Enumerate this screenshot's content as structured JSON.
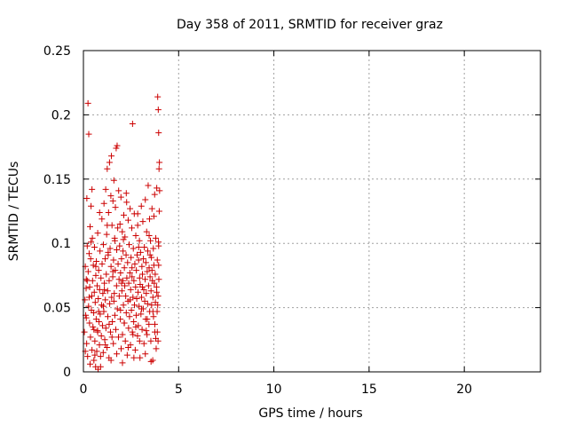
{
  "chart_data": {
    "type": "scatter",
    "title": "Day 358 of 2011, SRMTID for receiver graz",
    "xlabel": "GPS time / hours",
    "ylabel": "SRMTID / TECUs",
    "xlim": [
      0,
      24
    ],
    "ylim": [
      0,
      0.25
    ],
    "xticks": [
      0,
      5,
      10,
      15,
      20
    ],
    "xtick_labels": [
      "0",
      "5",
      "10",
      "15",
      "20"
    ],
    "yticks": [
      0,
      0.05,
      0.1,
      0.15,
      0.2,
      0.25
    ],
    "ytick_labels": [
      "0",
      "0.05",
      "0.1",
      "0.15",
      "0.2",
      "0.25"
    ],
    "grid": true,
    "marker": "plus",
    "marker_color": "#cc0000",
    "series": [
      {
        "points": [
          [
            0.05,
            0.031
          ],
          [
            0.08,
            0.056
          ],
          [
            0.1,
            0.082
          ],
          [
            0.12,
            0.044
          ],
          [
            0.14,
            0.065
          ],
          [
            0.15,
            0.072
          ],
          [
            0.17,
            0.022
          ],
          [
            0.18,
            0.135
          ],
          [
            0.2,
            0.098
          ],
          [
            0.22,
            0.012
          ],
          [
            0.24,
            0.209
          ],
          [
            0.25,
            0.078
          ],
          [
            0.27,
            0.051
          ],
          [
            0.28,
            0.185
          ],
          [
            0.3,
            0.092
          ],
          [
            0.32,
            0.038
          ],
          [
            0.33,
            0.066
          ],
          [
            0.35,
            0.113
          ],
          [
            0.37,
            0.027
          ],
          [
            0.38,
            0.088
          ],
          [
            0.4,
            0.129
          ],
          [
            0.42,
            0.048
          ],
          [
            0.44,
            0.059
          ],
          [
            0.45,
            0.017
          ],
          [
            0.47,
            0.104
          ],
          [
            0.48,
            0.071
          ],
          [
            0.5,
            0.035
          ],
          [
            0.52,
            0.083
          ],
          [
            0.54,
            0.046
          ],
          [
            0.55,
            0.009
          ],
          [
            0.57,
            0.062
          ],
          [
            0.58,
            0.097
          ],
          [
            0.6,
            0.024
          ],
          [
            0.62,
            0.054
          ],
          [
            0.64,
            0.004
          ],
          [
            0.65,
            0.075
          ],
          [
            0.67,
            0.041
          ],
          [
            0.68,
            0.086
          ],
          [
            0.7,
            0.016
          ],
          [
            0.72,
            0.067
          ],
          [
            0.74,
            0.032
          ],
          [
            0.75,
            0.108
          ],
          [
            0.77,
            0.002
          ],
          [
            0.78,
            0.057
          ],
          [
            0.8,
            0.079
          ],
          [
            0.82,
            0.039
          ],
          [
            0.84,
            0.021
          ],
          [
            0.85,
            0.064
          ],
          [
            0.87,
            0.094
          ],
          [
            0.88,
            0.045
          ],
          [
            0.9,
            0.012
          ],
          [
            0.92,
            0.073
          ],
          [
            0.94,
            0.028
          ],
          [
            0.95,
            0.052
          ],
          [
            0.97,
            0.119
          ],
          [
            0.98,
            0.084
          ],
          [
            1.0,
            0.036
          ],
          [
            1.02,
            0.061
          ],
          [
            1.04,
            0.015
          ],
          [
            1.05,
            0.099
          ],
          [
            1.07,
            0.047
          ],
          [
            1.08,
            0.131
          ],
          [
            1.1,
            0.069
          ],
          [
            1.12,
            0.025
          ],
          [
            1.14,
            0.088
          ],
          [
            1.15,
            0.056
          ],
          [
            1.17,
            0.142
          ],
          [
            1.18,
            0.034
          ],
          [
            1.2,
            0.076
          ],
          [
            1.22,
            0.107
          ],
          [
            1.24,
            0.019
          ],
          [
            1.25,
            0.158
          ],
          [
            1.27,
            0.063
          ],
          [
            1.28,
            0.043
          ],
          [
            1.3,
            0.091
          ],
          [
            1.32,
            0.124
          ],
          [
            1.34,
            0.011
          ],
          [
            1.35,
            0.071
          ],
          [
            1.37,
            0.163
          ],
          [
            1.38,
            0.053
          ],
          [
            1.4,
            0.096
          ],
          [
            1.42,
            0.031
          ],
          [
            1.44,
            0.137
          ],
          [
            1.45,
            0.082
          ],
          [
            1.47,
            0.168
          ],
          [
            1.48,
            0.058
          ],
          [
            1.5,
            0.114
          ],
          [
            1.52,
            0.039
          ],
          [
            1.54,
            0.074
          ],
          [
            1.55,
            0.133
          ],
          [
            1.57,
            0.022
          ],
          [
            1.58,
            0.087
          ],
          [
            1.6,
            0.149
          ],
          [
            1.62,
            0.061
          ],
          [
            1.64,
            0.104
          ],
          [
            1.65,
            0.044
          ],
          [
            1.67,
            0.079
          ],
          [
            1.68,
            0.128
          ],
          [
            1.7,
            0.033
          ],
          [
            1.72,
            0.174
          ],
          [
            1.74,
            0.067
          ],
          [
            1.75,
            0.095
          ],
          [
            1.77,
            0.176
          ],
          [
            1.78,
            0.049
          ],
          [
            1.8,
            0.112
          ],
          [
            1.82,
            0.084
          ],
          [
            1.84,
            0.027
          ],
          [
            1.85,
            0.141
          ],
          [
            1.87,
            0.072
          ],
          [
            1.88,
            0.059
          ],
          [
            1.9,
            0.098
          ],
          [
            1.92,
            0.115
          ],
          [
            1.94,
            0.041
          ],
          [
            1.95,
            0.077
          ],
          [
            1.97,
            0.136
          ],
          [
            1.98,
            0.018
          ],
          [
            2.0,
            0.088
          ],
          [
            2.02,
            0.063
          ],
          [
            2.04,
            0.109
          ],
          [
            2.05,
            0.029
          ],
          [
            2.07,
            0.071
          ],
          [
            2.08,
            0.094
          ],
          [
            2.1,
            0.052
          ],
          [
            2.12,
            0.122
          ],
          [
            2.14,
            0.038
          ],
          [
            2.15,
            0.081
          ],
          [
            2.17,
            0.067
          ],
          [
            2.18,
            0.105
          ],
          [
            2.2,
            0.024
          ],
          [
            2.22,
            0.059
          ],
          [
            2.24,
            0.091
          ],
          [
            2.25,
            0.046
          ],
          [
            2.27,
            0.132
          ],
          [
            2.28,
            0.073
          ],
          [
            2.3,
            0.013
          ],
          [
            2.32,
            0.085
          ],
          [
            2.34,
            0.055
          ],
          [
            2.35,
            0.118
          ],
          [
            2.37,
            0.034
          ],
          [
            2.38,
            0.069
          ],
          [
            2.4,
            0.099
          ],
          [
            2.42,
            0.043
          ],
          [
            2.44,
            0.077
          ],
          [
            2.45,
            0.127
          ],
          [
            2.47,
            0.021
          ],
          [
            2.48,
            0.064
          ],
          [
            2.5,
            0.089
          ],
          [
            2.52,
            0.048
          ],
          [
            2.54,
            0.112
          ],
          [
            2.55,
            0.074
          ],
          [
            2.57,
            0.031
          ],
          [
            2.58,
            0.193
          ],
          [
            2.6,
            0.058
          ],
          [
            2.62,
            0.096
          ],
          [
            2.64,
            0.039
          ],
          [
            2.65,
            0.071
          ],
          [
            2.67,
            0.123
          ],
          [
            2.68,
            0.052
          ],
          [
            2.7,
            0.084
          ],
          [
            2.72,
            0.017
          ],
          [
            2.74,
            0.066
          ],
          [
            2.75,
            0.106
          ],
          [
            2.77,
            0.044
          ],
          [
            2.78,
            0.079
          ],
          [
            2.8,
            0.057
          ],
          [
            2.82,
            0.091
          ],
          [
            2.84,
            0.028
          ],
          [
            2.85,
            0.114
          ],
          [
            2.87,
            0.062
          ],
          [
            2.88,
            0.036
          ],
          [
            2.9,
            0.087
          ],
          [
            2.92,
            0.051
          ],
          [
            2.94,
            0.102
          ],
          [
            2.95,
            0.073
          ],
          [
            2.97,
            0.011
          ],
          [
            2.98,
            0.068
          ],
          [
            3.0,
            0.093
          ],
          [
            3.02,
            0.045
          ],
          [
            3.04,
            0.129
          ],
          [
            3.05,
            0.058
          ],
          [
            3.07,
            0.082
          ],
          [
            3.08,
            0.033
          ],
          [
            3.1,
            0.076
          ],
          [
            3.12,
            0.117
          ],
          [
            3.14,
            0.049
          ],
          [
            3.15,
            0.088
          ],
          [
            3.17,
            0.064
          ],
          [
            3.18,
            0.022
          ],
          [
            3.2,
            0.097
          ],
          [
            3.22,
            0.055
          ],
          [
            3.24,
            0.072
          ],
          [
            3.25,
            0.134
          ],
          [
            3.27,
            0.041
          ],
          [
            3.28,
            0.085
          ],
          [
            3.3,
            0.061
          ],
          [
            3.32,
            0.109
          ],
          [
            3.34,
            0.029
          ],
          [
            3.35,
            0.078
          ],
          [
            3.37,
            0.053
          ],
          [
            3.38,
            0.094
          ],
          [
            3.4,
            0.145
          ],
          [
            3.42,
            0.067
          ],
          [
            3.44,
            0.037
          ],
          [
            3.45,
            0.081
          ],
          [
            3.47,
            0.119
          ],
          [
            3.48,
            0.047
          ],
          [
            3.5,
            0.074
          ],
          [
            3.52,
            0.102
          ],
          [
            3.54,
            0.024
          ],
          [
            3.55,
            0.063
          ],
          [
            3.57,
            0.089
          ],
          [
            3.58,
            0.052
          ],
          [
            3.6,
            0.127
          ],
          [
            3.62,
            0.071
          ],
          [
            3.64,
            0.009
          ],
          [
            3.65,
            0.058
          ],
          [
            3.67,
            0.096
          ],
          [
            3.68,
            0.043
          ],
          [
            3.7,
            0.083
          ],
          [
            3.72,
            0.069
          ],
          [
            3.74,
            0.138
          ],
          [
            3.75,
            0.031
          ],
          [
            3.77,
            0.076
          ],
          [
            3.78,
            0.054
          ],
          [
            3.8,
            0.104
          ],
          [
            3.82,
            0.018
          ],
          [
            3.84,
            0.066
          ],
          [
            3.85,
            0.143
          ],
          [
            3.87,
            0.047
          ],
          [
            3.88,
            0.087
          ],
          [
            3.9,
            0.214
          ],
          [
            3.92,
            0.059
          ],
          [
            3.93,
            0.204
          ],
          [
            3.94,
            0.101
          ],
          [
            3.95,
            0.186
          ],
          [
            3.96,
            0.072
          ],
          [
            3.97,
            0.158
          ],
          [
            3.98,
            0.125
          ],
          [
            3.99,
            0.163
          ],
          [
            4.0,
            0.141
          ],
          [
            0.1,
            0.016
          ],
          [
            0.35,
            0.006
          ],
          [
            0.6,
            0.013
          ],
          [
            0.9,
            0.004
          ],
          [
            1.15,
            0.021
          ],
          [
            1.45,
            0.009
          ],
          [
            1.75,
            0.014
          ],
          [
            2.05,
            0.007
          ],
          [
            2.35,
            0.019
          ],
          [
            2.65,
            0.011
          ],
          [
            2.95,
            0.024
          ],
          [
            3.25,
            0.014
          ],
          [
            3.55,
            0.008
          ],
          [
            3.8,
            0.026
          ],
          [
            0.45,
            0.142
          ],
          [
            0.85,
            0.124
          ],
          [
            1.25,
            0.114
          ],
          [
            1.65,
            0.102
          ],
          [
            2.25,
            0.139
          ],
          [
            2.85,
            0.123
          ],
          [
            3.45,
            0.106
          ],
          [
            3.7,
            0.121
          ],
          [
            0.15,
            0.042
          ],
          [
            0.3,
            0.058
          ],
          [
            0.55,
            0.033
          ],
          [
            0.8,
            0.047
          ],
          [
            1.05,
            0.051
          ],
          [
            1.35,
            0.037
          ],
          [
            1.6,
            0.055
          ],
          [
            1.95,
            0.048
          ],
          [
            2.15,
            0.038
          ],
          [
            2.45,
            0.056
          ],
          [
            2.75,
            0.035
          ],
          [
            3.05,
            0.049
          ],
          [
            3.35,
            0.041
          ],
          [
            3.65,
            0.047
          ],
          [
            3.9,
            0.052
          ],
          [
            0.2,
            0.071
          ],
          [
            0.65,
            0.082
          ],
          [
            1.1,
            0.064
          ],
          [
            1.55,
            0.078
          ],
          [
            2.0,
            0.069
          ],
          [
            2.55,
            0.081
          ],
          [
            3.1,
            0.066
          ],
          [
            3.6,
            0.079
          ],
          [
            3.95,
            0.083
          ],
          [
            0.4,
            0.101
          ],
          [
            1.3,
            0.093
          ],
          [
            2.1,
            0.103
          ],
          [
            2.9,
            0.097
          ],
          [
            3.5,
            0.091
          ],
          [
            3.85,
            0.062
          ],
          [
            0.75,
            0.031
          ],
          [
            1.5,
            0.027
          ],
          [
            2.6,
            0.029
          ],
          [
            3.3,
            0.032
          ],
          [
            3.75,
            0.037
          ],
          [
            3.95,
            0.098
          ],
          [
            3.92,
            0.024
          ],
          [
            3.88,
            0.031
          ]
        ]
      }
    ]
  }
}
